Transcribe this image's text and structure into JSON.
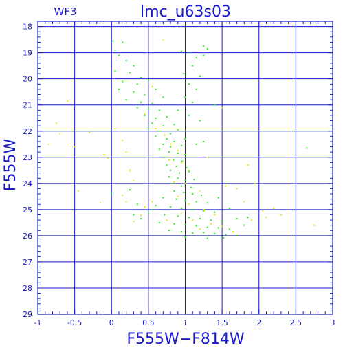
{
  "chart_data": {
    "type": "scatter",
    "title": "lmc_u63s03",
    "subtitle": "WF3",
    "xlabel": "F555W−F814W",
    "ylabel": "F555W",
    "xlim": [
      -1,
      3
    ],
    "ylim": [
      29,
      17.8
    ],
    "y_axis_inverted": true,
    "grid": true,
    "x_ticks": [
      -1,
      -0.5,
      0,
      0.5,
      1,
      1.5,
      2,
      2.5,
      3
    ],
    "x_tick_labels": [
      "-1",
      "-0.5",
      "0",
      "0.5",
      "1",
      "1.5",
      "2",
      "2.5",
      "3"
    ],
    "y_ticks": [
      18,
      19,
      20,
      21,
      22,
      23,
      24,
      25,
      26,
      27,
      28,
      29
    ],
    "y_tick_labels": [
      "18",
      "19",
      "20",
      "21",
      "22",
      "23",
      "24",
      "25",
      "26",
      "27",
      "28",
      "29"
    ],
    "colors": {
      "axis": "#1a1acc",
      "grid": "#1a1acc",
      "green": "#22ee22",
      "yellow": "#e8e800"
    },
    "series": [
      {
        "color": "green",
        "points": [
          [
            0.02,
            18.55
          ],
          [
            0.15,
            18.6
          ],
          [
            0.05,
            18.9
          ],
          [
            0.1,
            19.1
          ],
          [
            0.2,
            19.3
          ],
          [
            0.3,
            19.5
          ],
          [
            0.05,
            19.7
          ],
          [
            0.25,
            19.75
          ],
          [
            0.4,
            19.95
          ],
          [
            0.15,
            20.1
          ],
          [
            0.35,
            20.2
          ],
          [
            0.5,
            20.05
          ],
          [
            0.1,
            20.4
          ],
          [
            0.3,
            20.5
          ],
          [
            0.45,
            20.6
          ],
          [
            0.6,
            20.4
          ],
          [
            0.2,
            20.8
          ],
          [
            0.4,
            20.9
          ],
          [
            0.55,
            20.95
          ],
          [
            0.7,
            20.7
          ],
          [
            0.35,
            21.1
          ],
          [
            0.5,
            21.15
          ],
          [
            0.65,
            21.2
          ],
          [
            0.45,
            21.4
          ],
          [
            0.6,
            21.5
          ],
          [
            0.75,
            21.45
          ],
          [
            0.55,
            21.7
          ],
          [
            0.7,
            21.8
          ],
          [
            0.85,
            21.75
          ],
          [
            0.5,
            21.9
          ],
          [
            0.65,
            22.0
          ],
          [
            0.8,
            22.1
          ],
          [
            0.9,
            21.95
          ],
          [
            0.6,
            22.2
          ],
          [
            0.75,
            22.3
          ],
          [
            0.85,
            22.4
          ],
          [
            0.7,
            22.5
          ],
          [
            0.8,
            22.6
          ],
          [
            0.95,
            22.55
          ],
          [
            0.65,
            22.7
          ],
          [
            0.78,
            22.8
          ],
          [
            0.9,
            22.85
          ],
          [
            1.0,
            22.9
          ],
          [
            0.72,
            23.0
          ],
          [
            0.84,
            23.1
          ],
          [
            0.96,
            23.15
          ],
          [
            0.75,
            23.3
          ],
          [
            0.88,
            23.35
          ],
          [
            1.02,
            23.4
          ],
          [
            0.8,
            23.5
          ],
          [
            0.92,
            23.6
          ],
          [
            1.05,
            23.55
          ],
          [
            0.78,
            23.75
          ],
          [
            0.9,
            23.8
          ],
          [
            1.0,
            23.9
          ],
          [
            1.12,
            23.85
          ],
          [
            0.82,
            24.0
          ],
          [
            0.95,
            24.1
          ],
          [
            1.08,
            24.15
          ],
          [
            0.85,
            24.3
          ],
          [
            0.98,
            24.35
          ],
          [
            1.1,
            24.4
          ],
          [
            1.22,
            24.45
          ],
          [
            0.7,
            24.55
          ],
          [
            0.88,
            24.6
          ],
          [
            1.0,
            24.65
          ],
          [
            1.15,
            24.7
          ],
          [
            1.3,
            24.75
          ],
          [
            0.6,
            24.85
          ],
          [
            0.8,
            24.9
          ],
          [
            0.95,
            24.95
          ],
          [
            1.1,
            25.0
          ],
          [
            1.25,
            25.05
          ],
          [
            1.4,
            25.1
          ],
          [
            0.5,
            25.15
          ],
          [
            0.72,
            25.2
          ],
          [
            0.9,
            25.25
          ],
          [
            1.05,
            25.3
          ],
          [
            1.2,
            25.35
          ],
          [
            1.35,
            25.4
          ],
          [
            1.5,
            25.45
          ],
          [
            0.65,
            25.5
          ],
          [
            0.85,
            25.55
          ],
          [
            1.0,
            25.6
          ],
          [
            1.15,
            25.62
          ],
          [
            1.3,
            25.68
          ],
          [
            1.45,
            25.7
          ],
          [
            1.6,
            25.75
          ],
          [
            0.78,
            25.8
          ],
          [
            0.95,
            25.85
          ],
          [
            1.1,
            25.9
          ],
          [
            1.25,
            25.88
          ],
          [
            1.4,
            25.92
          ],
          [
            1.55,
            25.95
          ],
          [
            1.7,
            26.0
          ],
          [
            1.0,
            26.05
          ],
          [
            1.3,
            26.1
          ],
          [
            1.52,
            26.08
          ],
          [
            0.3,
            25.2
          ],
          [
            0.4,
            25.35
          ],
          [
            0.55,
            25.0
          ],
          [
            0.35,
            24.8
          ],
          [
            0.0,
            24.4
          ],
          [
            0.25,
            24.25
          ],
          [
            1.45,
            24.55
          ],
          [
            1.6,
            24.95
          ],
          [
            1.7,
            25.35
          ],
          [
            1.8,
            25.6
          ],
          [
            0.95,
            18.95
          ],
          [
            1.05,
            19.0
          ],
          [
            1.15,
            19.2
          ],
          [
            1.25,
            19.1
          ],
          [
            1.1,
            19.5
          ],
          [
            0.98,
            19.8
          ],
          [
            1.2,
            19.9
          ],
          [
            1.05,
            20.2
          ],
          [
            1.15,
            20.4
          ],
          [
            1.0,
            20.7
          ],
          [
            1.1,
            20.9
          ],
          [
            1.25,
            18.75
          ],
          [
            1.3,
            18.85
          ],
          [
            0.9,
            21.2
          ],
          [
            1.4,
            21.0
          ],
          [
            1.05,
            21.4
          ],
          [
            1.2,
            21.6
          ],
          [
            1.0,
            22.3
          ],
          [
            1.15,
            22.5
          ],
          [
            1.25,
            22.4
          ],
          [
            2.65,
            22.65
          ],
          [
            1.85,
            25.3
          ]
        ]
      },
      {
        "color": "yellow",
        "points": [
          [
            0.7,
            18.5
          ],
          [
            0.55,
            20.3
          ],
          [
            0.45,
            21.35
          ],
          [
            0.6,
            21.9
          ],
          [
            0.72,
            22.15
          ],
          [
            0.8,
            22.5
          ],
          [
            0.9,
            22.75
          ],
          [
            0.78,
            23.1
          ],
          [
            0.95,
            23.2
          ],
          [
            1.05,
            23.5
          ],
          [
            0.85,
            23.95
          ],
          [
            1.0,
            24.0
          ],
          [
            1.2,
            24.3
          ],
          [
            0.9,
            24.5
          ],
          [
            1.05,
            24.8
          ],
          [
            1.25,
            25.0
          ],
          [
            1.4,
            25.2
          ],
          [
            0.95,
            25.15
          ],
          [
            1.1,
            25.4
          ],
          [
            1.35,
            25.55
          ],
          [
            1.5,
            25.65
          ],
          [
            0.75,
            25.4
          ],
          [
            1.2,
            25.75
          ],
          [
            1.65,
            25.85
          ],
          [
            0.4,
            25.2
          ],
          [
            0.3,
            25.45
          ],
          [
            0.55,
            24.7
          ],
          [
            0.45,
            24.9
          ],
          [
            0.2,
            24.7
          ],
          [
            0.15,
            24.45
          ],
          [
            -0.85,
            22.5
          ],
          [
            -0.75,
            21.7
          ],
          [
            -0.7,
            22.1
          ],
          [
            -0.5,
            22.6
          ],
          [
            -0.45,
            24.3
          ],
          [
            -0.3,
            22.05
          ],
          [
            -0.15,
            24.75
          ],
          [
            -0.1,
            22.9
          ],
          [
            -0.05,
            23.05
          ],
          [
            0.05,
            21.9
          ],
          [
            0.15,
            22.35
          ],
          [
            0.2,
            22.8
          ],
          [
            0.25,
            23.5
          ],
          [
            0.3,
            23.9
          ],
          [
            1.3,
            23.0
          ],
          [
            1.55,
            24.1
          ],
          [
            1.7,
            24.2
          ],
          [
            1.8,
            24.7
          ],
          [
            1.85,
            23.3
          ],
          [
            1.9,
            25.4
          ],
          [
            1.95,
            24.0
          ],
          [
            2.05,
            25.05
          ],
          [
            2.1,
            25.3
          ],
          [
            2.2,
            24.95
          ],
          [
            2.3,
            25.2
          ],
          [
            2.75,
            25.6
          ],
          [
            1.5,
            21.1
          ],
          [
            -0.6,
            20.85
          ]
        ]
      }
    ]
  }
}
